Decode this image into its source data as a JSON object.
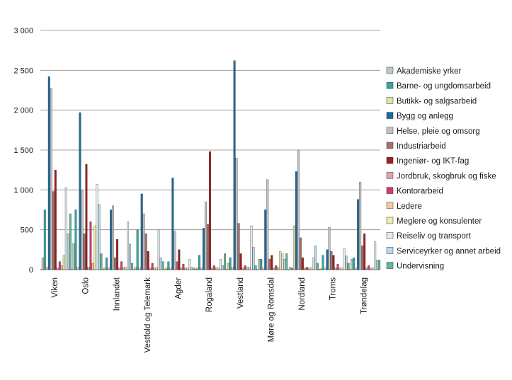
{
  "chart_data": {
    "type": "bar",
    "ylim": [
      0,
      3000
    ],
    "yticks": [
      0,
      500,
      1000,
      1500,
      2000,
      2500,
      3000
    ],
    "ytick_labels": [
      "0",
      "500",
      "1 000",
      "1 500",
      "2 000",
      "2 500",
      "3 000"
    ],
    "grid": true,
    "legend_position": "right",
    "categories": [
      "Viken",
      "Oslo",
      "Innlandet",
      "Vestfold og Telemark",
      "Agder",
      "Rogaland",
      "Vestland",
      "Møre og Romsdal",
      "Nordland",
      "Troms",
      "Trøndelag"
    ],
    "series": [
      {
        "name": "Akademiske yrker",
        "color": "#b7cdb8",
        "values": [
          150,
          330,
          20,
          30,
          20,
          20,
          80,
          130,
          30,
          10,
          130
        ]
      },
      {
        "name": "Barne- og ungdomsarbeid",
        "color": "#35a6a2",
        "values": [
          750,
          750,
          150,
          500,
          100,
          180,
          150,
          130,
          20,
          180,
          150
        ]
      },
      {
        "name": "Butikk- og salgsarbeid",
        "color": "#e6e3a4",
        "values": [
          30,
          30,
          20,
          20,
          20,
          20,
          30,
          20,
          550,
          20,
          20
        ]
      },
      {
        "name": "Bygg og anlegg",
        "color": "#1a6b9f",
        "values": [
          2420,
          1970,
          750,
          950,
          1150,
          520,
          2620,
          750,
          1230,
          250,
          880
        ]
      },
      {
        "name": "Helse, pleie og omsorg",
        "color": "#c4c4c4",
        "values": [
          2270,
          1000,
          800,
          700,
          480,
          850,
          1400,
          1130,
          1500,
          530,
          1100
        ]
      },
      {
        "name": "Industriarbeid",
        "color": "#a6706c",
        "values": [
          980,
          450,
          150,
          450,
          100,
          570,
          580,
          130,
          400,
          230,
          300
        ]
      },
      {
        "name": "Ingeniør- og IKT-fag",
        "color": "#a11c1c",
        "values": [
          1250,
          1320,
          380,
          230,
          250,
          1480,
          200,
          180,
          150,
          180,
          450
        ]
      },
      {
        "name": "Jordbruk, skogbruk og fiske",
        "color": "#e5a3a3",
        "values": [
          20,
          30,
          20,
          20,
          20,
          20,
          20,
          20,
          20,
          20,
          20
        ]
      },
      {
        "name": "Kontorarbeid",
        "color": "#d23c6e",
        "values": [
          100,
          600,
          100,
          80,
          70,
          50,
          50,
          50,
          30,
          70,
          50
        ]
      },
      {
        "name": "Ledere",
        "color": "#f4c7a4",
        "values": [
          50,
          80,
          30,
          20,
          20,
          20,
          30,
          30,
          20,
          20,
          20
        ]
      },
      {
        "name": "Meglere og konsulenter",
        "color": "#f3eda9",
        "values": [
          180,
          550,
          30,
          30,
          20,
          20,
          30,
          230,
          20,
          20,
          20
        ]
      },
      {
        "name": "Reiseliv og transport",
        "color": "#e3ece6",
        "values": [
          1030,
          1070,
          600,
          500,
          130,
          130,
          550,
          200,
          150,
          270,
          350
        ]
      },
      {
        "name": "Serviceyrker og annet arbeid",
        "color": "#b7d9ee",
        "values": [
          450,
          820,
          320,
          150,
          30,
          50,
          280,
          130,
          300,
          170,
          120
        ]
      },
      {
        "name": "Undervisning",
        "color": "#67b794",
        "values": [
          700,
          200,
          80,
          100,
          20,
          200,
          50,
          200,
          80,
          80,
          120
        ]
      }
    ]
  }
}
